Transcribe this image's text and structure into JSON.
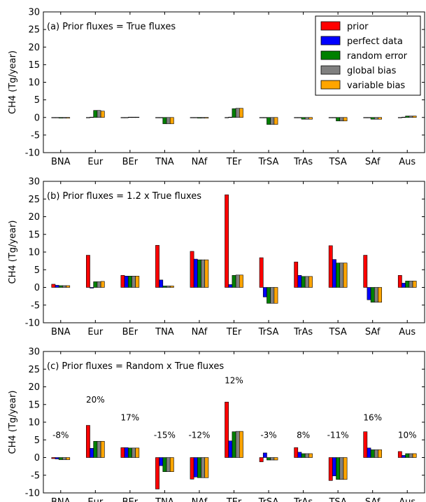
{
  "chart_data": [
    {
      "type": "bar",
      "title": "(a) Prior fluxes = True fluxes",
      "ylabel": "CH4 (Tg/year)",
      "ylim": [
        -10,
        30
      ],
      "yticks": [
        -10,
        -5,
        0,
        5,
        10,
        15,
        20,
        25,
        30
      ],
      "categories": [
        "BNA",
        "Eur",
        "BEr",
        "TNA",
        "NAf",
        "TEr",
        "TrSA",
        "TrAs",
        "TSA",
        "SAf",
        "Aus"
      ],
      "legend": "top-right",
      "series": [
        {
          "name": "prior",
          "color": "#ff0000",
          "values": [
            0,
            0,
            0,
            0,
            0,
            0,
            0,
            0,
            0,
            0,
            0
          ]
        },
        {
          "name": "perfect data",
          "color": "#0000ff",
          "values": [
            -0.1,
            0.1,
            0,
            -0.1,
            -0.1,
            0.1,
            -0.1,
            0,
            0,
            0,
            0.1
          ]
        },
        {
          "name": "random error",
          "color": "#008000",
          "values": [
            -0.2,
            2.0,
            0.1,
            -1.8,
            -0.2,
            2.5,
            -2.0,
            -0.5,
            -1.0,
            -0.5,
            0.4
          ]
        },
        {
          "name": "global bias",
          "color": "#808080",
          "values": [
            -0.2,
            2.0,
            0.1,
            -1.8,
            -0.2,
            2.6,
            -2.0,
            -0.5,
            -1.0,
            -0.5,
            0.4
          ]
        },
        {
          "name": "variable bias",
          "color": "#ffa500",
          "values": [
            -0.2,
            1.8,
            0.1,
            -1.8,
            -0.2,
            2.6,
            -2.0,
            -0.5,
            -1.0,
            -0.5,
            0.4
          ]
        }
      ],
      "annotations": []
    },
    {
      "type": "bar",
      "title": "(b) Prior fluxes = 1.2 x True fluxes",
      "ylabel": "CH4 (Tg/year)",
      "ylim": [
        -10,
        30
      ],
      "yticks": [
        -10,
        -5,
        0,
        5,
        10,
        15,
        20,
        25,
        30
      ],
      "categories": [
        "BNA",
        "Eur",
        "BEr",
        "TNA",
        "NAf",
        "TEr",
        "TrSA",
        "TrAs",
        "TSA",
        "SAf",
        "Aus"
      ],
      "series": [
        {
          "name": "prior",
          "values": [
            0.9,
            9.1,
            3.4,
            11.9,
            10.2,
            26.2,
            8.4,
            7.2,
            11.8,
            9.1,
            3.4
          ]
        },
        {
          "name": "perfect data",
          "values": [
            0.6,
            -0.2,
            3.2,
            2.1,
            8.0,
            0.8,
            -2.7,
            3.4,
            7.9,
            -3.5,
            1.2
          ]
        },
        {
          "name": "random error",
          "values": [
            0.5,
            1.6,
            3.2,
            0.4,
            7.8,
            3.4,
            -4.5,
            3.1,
            6.9,
            -4.2,
            1.8
          ]
        },
        {
          "name": "global bias",
          "values": [
            0.5,
            1.6,
            3.2,
            0.4,
            7.8,
            3.5,
            -4.5,
            3.1,
            6.9,
            -4.2,
            1.8
          ]
        },
        {
          "name": "variable bias",
          "values": [
            0.5,
            1.7,
            3.2,
            0.4,
            7.8,
            3.5,
            -4.5,
            3.1,
            6.9,
            -4.2,
            1.8
          ]
        }
      ],
      "annotations": []
    },
    {
      "type": "bar",
      "title": "(c) Prior fluxes = Random x True fluxes",
      "ylabel": "CH4 (Tg/year)",
      "ylim": [
        -10,
        30
      ],
      "yticks": [
        -10,
        -5,
        0,
        5,
        10,
        15,
        20,
        25,
        30
      ],
      "categories": [
        "BNA",
        "Eur",
        "BEr",
        "TNA",
        "NAf",
        "TEr",
        "TrSA",
        "TrAs",
        "TSA",
        "SAf",
        "Aus"
      ],
      "series": [
        {
          "name": "prior",
          "values": [
            -0.3,
            9.1,
            2.8,
            -8.9,
            -6.1,
            15.7,
            -1.2,
            2.8,
            -6.5,
            7.3,
            1.7
          ]
        },
        {
          "name": "perfect data",
          "values": [
            -0.4,
            2.6,
            2.8,
            -2.3,
            -5.5,
            4.7,
            1.3,
            1.5,
            -5.2,
            2.7,
            0.6
          ]
        },
        {
          "name": "random error",
          "values": [
            -0.6,
            4.6,
            2.7,
            -4.0,
            -5.7,
            7.3,
            -0.7,
            1.1,
            -6.2,
            2.2,
            1.1
          ]
        },
        {
          "name": "global bias",
          "values": [
            -0.6,
            4.6,
            2.7,
            -4.0,
            -5.7,
            7.4,
            -0.7,
            1.1,
            -6.2,
            2.2,
            1.1
          ]
        },
        {
          "name": "variable bias",
          "values": [
            -0.6,
            4.6,
            2.7,
            -4.0,
            -5.7,
            7.4,
            -0.7,
            1.1,
            -6.2,
            2.2,
            1.1
          ]
        }
      ],
      "annotations": [
        {
          "category": "BNA",
          "text": "-8%",
          "y": 5.5
        },
        {
          "category": "Eur",
          "text": "20%",
          "y": 15.5
        },
        {
          "category": "BEr",
          "text": "17%",
          "y": 10.5
        },
        {
          "category": "TNA",
          "text": "-15%",
          "y": 5.5
        },
        {
          "category": "NAf",
          "text": "-12%",
          "y": 5.5
        },
        {
          "category": "TEr",
          "text": "12%",
          "y": 21.0
        },
        {
          "category": "TrSA",
          "text": "-3%",
          "y": 5.5
        },
        {
          "category": "TrAs",
          "text": "8%",
          "y": 5.5
        },
        {
          "category": "TSA",
          "text": "-11%",
          "y": 5.5
        },
        {
          "category": "SAf",
          "text": "16%",
          "y": 10.5
        },
        {
          "category": "Aus",
          "text": "10%",
          "y": 5.5
        }
      ]
    }
  ]
}
